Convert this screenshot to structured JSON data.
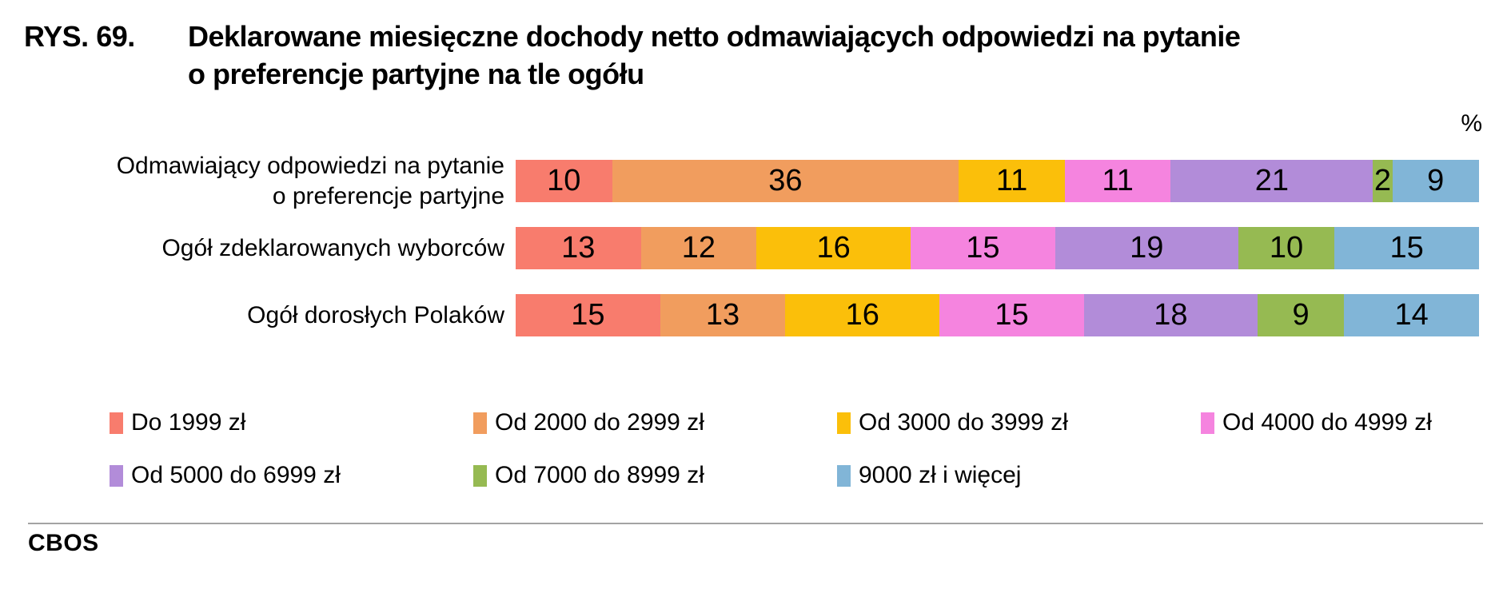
{
  "figure": {
    "number": "RYS. 69.",
    "title_line1": "Deklarowane miesięczne dochody netto odmawiających odpowiedzi na pytanie",
    "title_line2": "o preferencje partyjne na tle ogółu",
    "unit_label": "%",
    "source": "CBOS"
  },
  "chart_data": {
    "type": "bar",
    "orientation": "horizontal",
    "stacked": true,
    "unit": "%",
    "xlim": [
      0,
      100
    ],
    "grid": false,
    "legend_position": "bottom",
    "title": "RYS. 69. Deklarowane miesięczne dochody netto odmawiających odpowiedzi na pytanie o preferencje partyjne na tle ogółu",
    "categories": [
      "Odmawiający odpowiedzi na pytanie o preferencje partyjne",
      "Ogół zdeklarowanych wyborców",
      "Ogół dorosłych Polaków"
    ],
    "category_label_lines": [
      [
        "Odmawiający odpowiedzi na pytanie",
        "o preferencje partyjne"
      ],
      [
        "Ogół zdeklarowanych wyborców"
      ],
      [
        "Ogół dorosłych Polaków"
      ]
    ],
    "series": [
      {
        "name": "Do 1999 zł",
        "color": "#F87C6D",
        "values": [
          10,
          13,
          15
        ]
      },
      {
        "name": "Od 2000 do 2999 zł",
        "color": "#F19D5E",
        "values": [
          36,
          12,
          13
        ]
      },
      {
        "name": "Od 3000 do 3999 zł",
        "color": "#FBBF0A",
        "values": [
          11,
          16,
          16
        ]
      },
      {
        "name": "Od 4000 do 4999 zł",
        "color": "#F584DF",
        "values": [
          11,
          15,
          15
        ]
      },
      {
        "name": "Od 5000 do 6999 zł",
        "color": "#B28CD9",
        "values": [
          21,
          19,
          18
        ]
      },
      {
        "name": "Od 7000 do 8999 zł",
        "color": "#96BA52",
        "values": [
          2,
          10,
          9
        ]
      },
      {
        "name": "9000 zł i więcej",
        "color": "#81B5D7",
        "values": [
          9,
          15,
          14
        ]
      }
    ]
  }
}
